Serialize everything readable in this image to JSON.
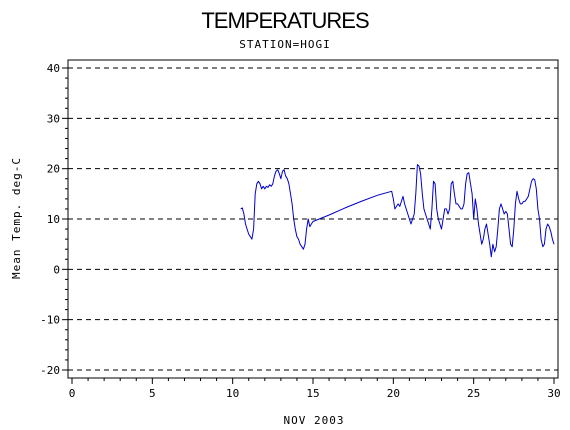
{
  "chart_data": {
    "type": "line",
    "title": "TEMPERATURES",
    "subtitle": "STATION=HOGI",
    "xlabel": "NOV 2003",
    "ylabel": "Mean Temp. deg-C",
    "xlim": [
      0,
      30
    ],
    "ylim": [
      -20,
      40
    ],
    "xticks": [
      "0",
      "5",
      "10",
      "15",
      "20",
      "25",
      "30"
    ],
    "yticks": [
      "40",
      "30",
      "20",
      "10",
      "0",
      "-10",
      "-20"
    ],
    "grid": "dashed horizontal at major y ticks",
    "series": [
      {
        "color": "#0000cc",
        "points": [
          [
            10.5,
            12
          ],
          [
            10.6,
            12.2
          ],
          [
            10.7,
            11
          ],
          [
            10.8,
            9
          ],
          [
            10.9,
            8
          ],
          [
            11.0,
            7
          ],
          [
            11.1,
            6.5
          ],
          [
            11.2,
            6
          ],
          [
            11.3,
            8
          ],
          [
            11.4,
            15
          ],
          [
            11.5,
            17
          ],
          [
            11.6,
            17.5
          ],
          [
            11.7,
            17
          ],
          [
            11.8,
            16
          ],
          [
            11.9,
            16.5
          ],
          [
            12.0,
            16
          ],
          [
            12.1,
            16.5
          ],
          [
            12.2,
            16.3
          ],
          [
            12.3,
            16.8
          ],
          [
            12.4,
            16.5
          ],
          [
            12.5,
            17
          ],
          [
            12.6,
            18.5
          ],
          [
            12.7,
            19.5
          ],
          [
            12.8,
            19.8
          ],
          [
            12.9,
            19
          ],
          [
            13.0,
            18
          ],
          [
            13.1,
            19.5
          ],
          [
            13.2,
            19.8
          ],
          [
            13.3,
            18.5
          ],
          [
            13.4,
            18
          ],
          [
            13.5,
            17
          ],
          [
            13.6,
            15
          ],
          [
            13.7,
            13
          ],
          [
            13.8,
            10
          ],
          [
            13.9,
            8
          ],
          [
            14.0,
            6.5
          ],
          [
            14.1,
            6
          ],
          [
            14.2,
            5
          ],
          [
            14.3,
            4.5
          ],
          [
            14.4,
            4
          ],
          [
            14.5,
            5
          ],
          [
            14.6,
            8
          ],
          [
            14.7,
            10
          ],
          [
            14.8,
            8.5
          ],
          [
            14.9,
            9
          ],
          [
            15.0,
            9.5
          ],
          [
            16,
            10.8
          ],
          [
            17,
            12.2
          ],
          [
            18,
            13.5
          ],
          [
            19,
            14.7
          ],
          [
            19.9,
            15.5
          ],
          [
            20.0,
            14
          ],
          [
            20.1,
            12
          ],
          [
            20.2,
            12.5
          ],
          [
            20.3,
            13
          ],
          [
            20.4,
            12.5
          ],
          [
            20.5,
            13.5
          ],
          [
            20.6,
            14.5
          ],
          [
            20.7,
            13
          ],
          [
            20.8,
            12
          ],
          [
            20.9,
            11
          ],
          [
            21.0,
            10
          ],
          [
            21.1,
            9
          ],
          [
            21.2,
            10
          ],
          [
            21.3,
            11
          ],
          [
            21.4,
            15
          ],
          [
            21.5,
            20.8
          ],
          [
            21.6,
            20.5
          ],
          [
            21.7,
            19
          ],
          [
            21.8,
            15
          ],
          [
            21.9,
            12
          ],
          [
            22.0,
            11
          ],
          [
            22.1,
            10
          ],
          [
            22.2,
            9
          ],
          [
            22.3,
            8
          ],
          [
            22.4,
            12
          ],
          [
            22.5,
            17.5
          ],
          [
            22.6,
            17
          ],
          [
            22.7,
            12
          ],
          [
            22.8,
            10
          ],
          [
            22.9,
            9
          ],
          [
            23.0,
            8
          ],
          [
            23.1,
            10
          ],
          [
            23.2,
            12
          ],
          [
            23.3,
            12
          ],
          [
            23.4,
            11
          ],
          [
            23.5,
            12
          ],
          [
            23.6,
            17
          ],
          [
            23.7,
            17.5
          ],
          [
            23.8,
            15
          ],
          [
            23.9,
            13
          ],
          [
            24.0,
            13
          ],
          [
            24.1,
            12.5
          ],
          [
            24.2,
            12
          ],
          [
            24.3,
            12
          ],
          [
            24.4,
            13
          ],
          [
            24.5,
            17
          ],
          [
            24.6,
            19
          ],
          [
            24.7,
            19.2
          ],
          [
            24.8,
            17
          ],
          [
            24.9,
            15
          ],
          [
            25.0,
            10
          ],
          [
            25.1,
            14
          ],
          [
            25.2,
            12
          ],
          [
            25.3,
            9
          ],
          [
            25.4,
            7
          ],
          [
            25.5,
            5
          ],
          [
            25.6,
            6
          ],
          [
            25.7,
            8
          ],
          [
            25.8,
            9
          ],
          [
            25.9,
            7
          ],
          [
            26.0,
            5
          ],
          [
            26.1,
            2.5
          ],
          [
            26.2,
            5
          ],
          [
            26.3,
            3.5
          ],
          [
            26.4,
            4.5
          ],
          [
            26.5,
            8
          ],
          [
            26.6,
            12
          ],
          [
            26.7,
            13
          ],
          [
            26.8,
            12
          ],
          [
            26.9,
            11
          ],
          [
            27.0,
            11.5
          ],
          [
            27.1,
            11
          ],
          [
            27.2,
            8
          ],
          [
            27.3,
            5
          ],
          [
            27.4,
            4.5
          ],
          [
            27.5,
            8
          ],
          [
            27.6,
            13
          ],
          [
            27.7,
            15.5
          ],
          [
            27.8,
            14
          ],
          [
            27.9,
            13
          ],
          [
            28.0,
            13
          ],
          [
            28.1,
            13.5
          ],
          [
            28.2,
            13.5
          ],
          [
            28.3,
            14
          ],
          [
            28.4,
            14.5
          ],
          [
            28.5,
            16
          ],
          [
            28.6,
            17.5
          ],
          [
            28.7,
            18
          ],
          [
            28.8,
            17.8
          ],
          [
            28.9,
            16
          ],
          [
            29.0,
            12
          ],
          [
            29.1,
            10
          ],
          [
            29.2,
            6
          ],
          [
            29.3,
            4.5
          ],
          [
            29.4,
            5
          ],
          [
            29.5,
            8
          ],
          [
            29.6,
            9
          ],
          [
            29.7,
            8.5
          ],
          [
            29.8,
            7.5
          ],
          [
            29.9,
            6
          ],
          [
            30.0,
            5
          ]
        ]
      }
    ]
  }
}
